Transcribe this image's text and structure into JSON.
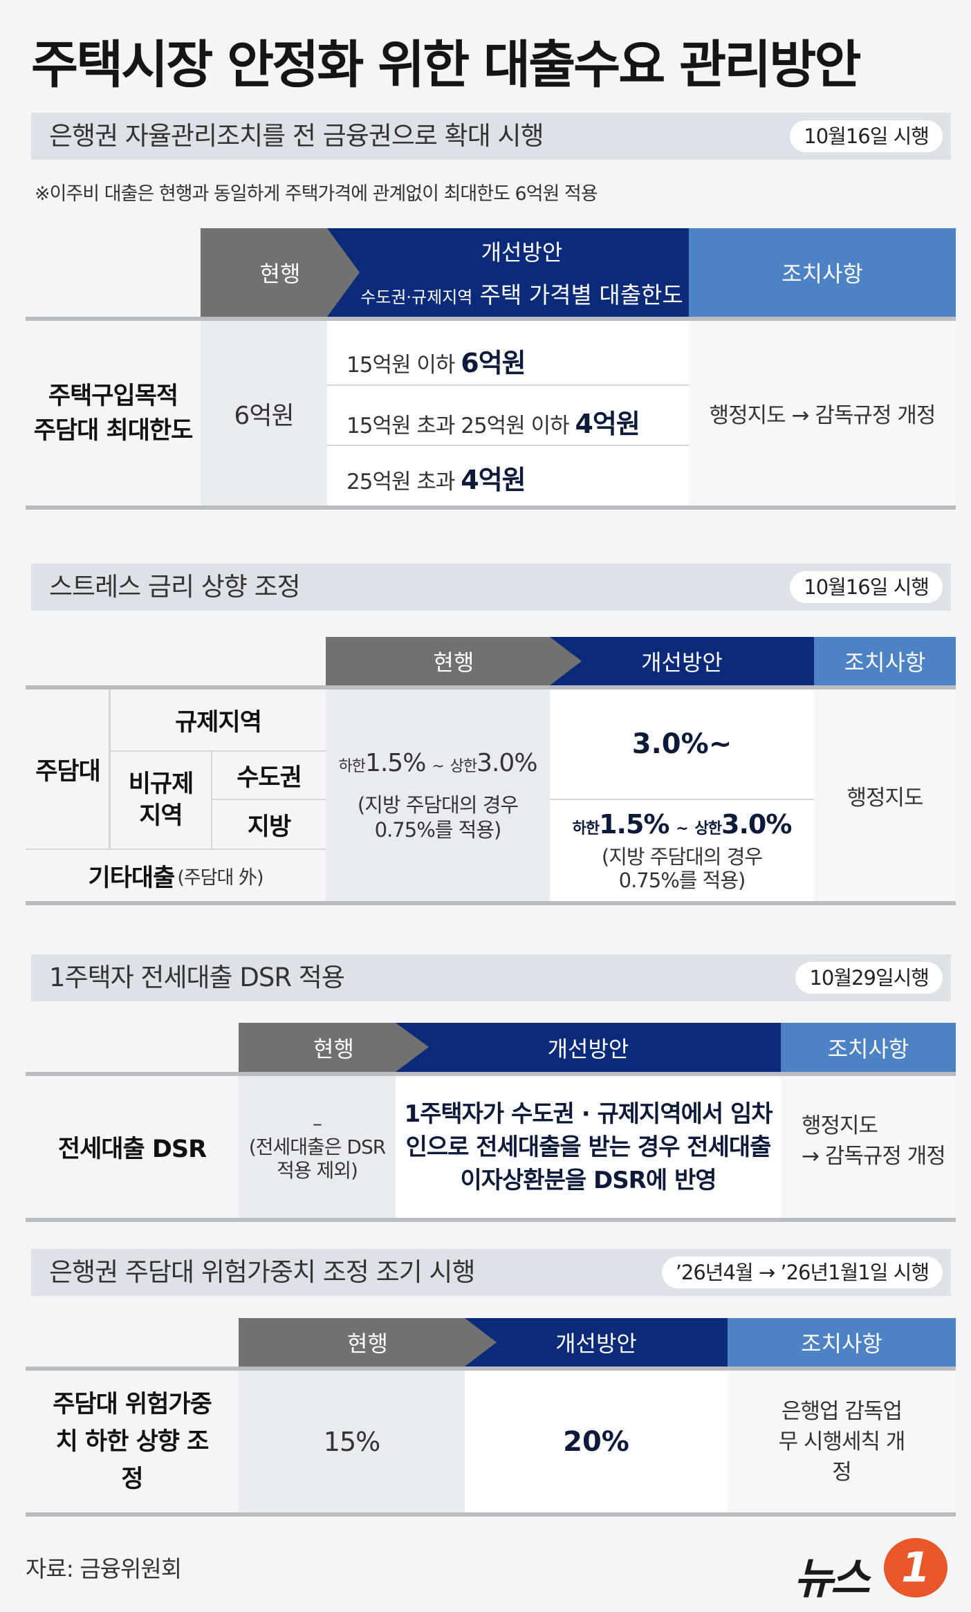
{
  "title": "주택시장 안정화 위한 대출수요 관리방안",
  "sections": [
    {
      "heading": "은행권 자율관리조치를 전 금융권으로 확대 시행",
      "badge": "10월16일 시행",
      "note": "※이주비 대출은 현행과 동일하게 주택가격에 관계없이 최대한도 6억원 적용",
      "header": {
        "current": "현행",
        "improvement": "개선방안",
        "improvement_sub_small": "수도권·규제지역",
        "improvement_sub": "주택 가격별 대출한도",
        "action": "조치사항"
      },
      "row_label_1": "주택구입목적",
      "row_label_2": "주담대 최대한도",
      "current": "6억원",
      "tiers": [
        {
          "cond": "15억원 이하",
          "value": "6억원"
        },
        {
          "cond": "15억원 초과 25억원 이하",
          "value": "4억원"
        },
        {
          "cond": "25억원 초과",
          "value": "4억원"
        }
      ],
      "action": "행정지도 → 감독규정 개정"
    },
    {
      "heading": "스트레스 금리 상향 조정",
      "badge": "10월16일 시행",
      "header": {
        "current": "현행",
        "improvement": "개선방안",
        "action": "조치사항"
      },
      "labels": {
        "mortgage": "주담대",
        "regulated": "규제지역",
        "non_regulated": "비규제 지역",
        "capital": "수도권",
        "local": "지방",
        "other": "기타대출",
        "other_note": "(주담대 外)"
      },
      "current": {
        "low_label": "하한",
        "low": "1.5%",
        "sep": "~",
        "high_label": "상한",
        "high": "3.0%",
        "note": "(지방 주담대의 경우 0.75%를 적용)"
      },
      "improvement": {
        "top": "3.0%~",
        "low_label": "하한",
        "low": "1.5%",
        "sep": "~",
        "high_label": "상한",
        "high": "3.0%",
        "note": "(지방 주담대의 경우 0.75%를 적용)"
      },
      "action": "행정지도"
    },
    {
      "heading": "1주택자 전세대출 DSR 적용",
      "badge": "10월29일시행",
      "header": {
        "current": "현행",
        "improvement": "개선방안",
        "action": "조치사항"
      },
      "row_label": "전세대출 DSR",
      "current_dash": "–",
      "current_note": "(전세대출은 DSR 적용 제외)",
      "improvement": "1주택자가 수도권 · 규제지역에서 임차인으로 전세대출을 받는 경우 전세대출 이자상환분을 DSR에 반영",
      "action_1": "행정지도",
      "action_2": "→ 감독규정 개정"
    },
    {
      "heading": "은행권 주담대 위험가중치 조정 조기 시행",
      "badge": "’26년4월 → ’26년1월1일 시행",
      "header": {
        "current": "현행",
        "improvement": "개선방안",
        "action": "조치사항"
      },
      "row_label": "주담대 위험가중치 하한 상향 조정",
      "current": "15%",
      "improvement": "20%",
      "action": "은행업 감독업무 시행세칙 개정"
    }
  ],
  "source": "자료: 금융위원회",
  "logo": {
    "text": "뉴스",
    "mark": "1",
    "accent": "#e8562a"
  }
}
